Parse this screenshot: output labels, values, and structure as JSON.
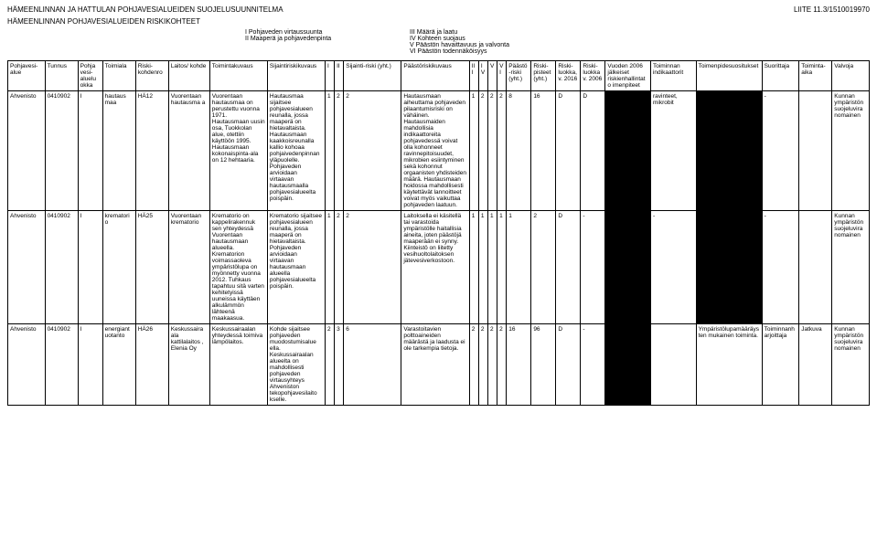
{
  "header": {
    "title_left": "HÄMEENLINNAN JA HATTULAN POHJAVESIALUEIDEN SUOJELUSUUNNITELMA",
    "title_right": "LIITE 11.3/1510019970",
    "subtitle": "HÄMEENLINNAN POHJAVESIALUEIDEN RISKIKOHTEET"
  },
  "legend": {
    "i": "I Pohjaveden virtaussuunta",
    "ii": "II Maaperä ja pohjavedenpinta",
    "iii": "III Määrä ja laatu",
    "iv": "IV Kohteen suojaus",
    "v": "V Päästön havaittavuus ja valvonta",
    "vi": "VI Päästön todennäköisyys"
  },
  "columns": [
    "Pohjavesi-alue",
    "Tunnus",
    "Pohja vesi-aluelu okka",
    "Toimiala",
    "Riski-kohdenro",
    "Laitos/ kohde",
    "Toimintakuvaus",
    "Sijaintiriskikuvaus",
    "I",
    "II",
    "Sijainti-riski (yht.)",
    "Päästöriskikuvaus",
    "III",
    "IV",
    "V",
    "VI",
    "Päästö-riski (yht.)",
    "Riski-pisteet (yht.)",
    "Riski-luokka, v. 2016",
    "Riski-luokka v. 2006",
    "Vuoden 2006 jälkeiset riskienhallintato imenpiteet",
    "Toiminnan indikaattorit",
    "Toimenpidesuositukset",
    "Suorittaja",
    "Toiminta-aika",
    "Valvoja"
  ],
  "rows": [
    {
      "c": [
        "Ahvenisto",
        "0410902",
        "I",
        "hautaus maa",
        "HÄ12",
        "Vuorentaan hautausma a",
        "Vuorentaan hautausmaa on perustettu vuonna 1971. Hautausmaan uusin osa, Tuokkolan alue, otettiin käyttöön 1995. Hautausmaan kokonaispinta-ala on 12 hehtaaria.",
        "Hautausmaa sijaitsee pohjavesialueen reunalla, jossa maaperä on hietavaltaista. Hautausmaan kaakkoisreunalla kallio kohoaa pohjaivedenpinnan yläpuolelle. Pohjaveden arvioidaan virtaavan hautausmaalla pohjavesialueelta poispäin.",
        "1",
        "2",
        "2",
        "Hautausmaan aiheuttama pohjaveden pilaantumisriski on vähäinen. Hautausmaiden mahdollisia indikaattoreita pohjavedessä voivat olla kohonneet ravinnepitoisuudet, mikrobien esiintyminen sekä kohonnut orgaanisten yhdisteiden määrä. Hautausmaan hoidossa mahdollisesti käytettävät lannoitteet voivat myös vaikuttaa pohjaveden laatuun.",
        "1",
        "2",
        "2",
        "2",
        "8",
        "16",
        "D",
        "D",
        "",
        "ravinteet, mikrobit",
        "",
        "-",
        "",
        "Kunnan ympäristön suojeluvira nomainen"
      ],
      "redact": [
        20,
        22
      ]
    },
    {
      "c": [
        "Ahvenisto",
        "0410902",
        "I",
        "krematori o",
        "HÄ25",
        "Vuorentaan krematorio",
        "Krematorio on kappelirakennuk sen yhteydessä Vuorentaan hautausmaan alueella. Krematorion voimassaoleva ympäristölupa on myönnetty vuonna 2012. Tuhkaus tapahtuu sitä varten kehitetyissä uuneissa käyttäen alkulämmön lähteenä maakaasua.",
        "Krematorio sijaitsee pohjavesialueen reunalla, jossa maaperä on hietavaltaista. Pohjaveden arvioidaan virtaavan hautausmaan alueella pohjavesialueelta poispäin.",
        "1",
        "2",
        "2",
        "Laitoksella ei käsitellä tai varastoida ympäristölle haitallisia aineita, joten päästöjä maaperään ei synny. Kiinteistö on liitetty vesihuoltolaitoksen jätevesiverkostoon.",
        "1",
        "1",
        "1",
        "1",
        "1",
        "2",
        "D",
        "-",
        "",
        "-",
        "",
        "-",
        "",
        "Kunnan ympäristön suojeluvira nomainen"
      ],
      "redact": [
        20,
        22
      ]
    },
    {
      "c": [
        "Ahvenisto",
        "0410902",
        "I",
        "energiant uotanto",
        "HÄ26",
        "Keskussaira ala kattilalaitos , Elenia Oy",
        "Keskussairaalan yhteydessä toimiva lämpölaitos.",
        "Kohde sijaitsee pohjaveden muodostumisalue ella. Keskussairaalan alueelta on mahdollisesti pohjaveden virtausyhteys Ahveniston tekopohjavesilaito kselle.",
        "2",
        "3",
        "6",
        "Varastoitavien polttoaineiden määrästä ja laadusta ei ole tarkempia tietoja.",
        "2",
        "2",
        "2",
        "2",
        "16",
        "96",
        "D",
        "-",
        "",
        "",
        "Ympäristölupamääräys ten mukainen toiminta.",
        "Toiminnanh arjoittaja",
        "Jatkuva",
        "Kunnan ympäristön suojeluvira nomainen"
      ],
      "redact": [
        20
      ]
    }
  ]
}
